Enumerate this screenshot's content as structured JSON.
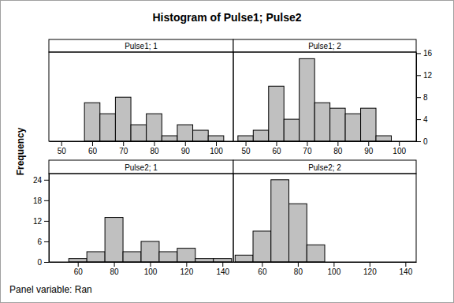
{
  "chart_data": {
    "type": "histogram",
    "title": "Histogram of Pulse1; Pulse2",
    "ylabel": "Frequency",
    "footnote": "Panel variable: Ran",
    "color": "#c0c0c0",
    "rows": [
      {
        "ylim": [
          0,
          16.2
        ],
        "yticks": [
          0,
          4,
          8,
          12,
          16
        ],
        "panels": [
          {
            "title": "Pulse1; 1",
            "xlim": [
              46,
              105.6
            ],
            "xticks": [
              50,
              60,
              70,
              80,
              90,
              100
            ],
            "bins": [
              57.5,
              62.5,
              67.5,
              72.5,
              77.5,
              82.5,
              87.5,
              92.5,
              97.5,
              102.5
            ],
            "values": [
              7,
              5,
              8,
              3,
              5,
              1,
              3,
              2,
              1
            ]
          },
          {
            "title": "Pulse1; 2",
            "xlim": [
              46,
              105.6
            ],
            "xticks": [
              50,
              60,
              70,
              80,
              90,
              100
            ],
            "bins": [
              47.5,
              52.5,
              57.5,
              62.5,
              67.5,
              72.5,
              77.5,
              82.5,
              87.5,
              92.5,
              97.5
            ],
            "values": [
              1,
              2,
              10,
              4,
              15,
              7,
              6,
              5,
              6,
              1
            ]
          }
        ]
      },
      {
        "ylim": [
          0,
          25.8
        ],
        "yticks": [
          0,
          6,
          12,
          18,
          24
        ],
        "panels": [
          {
            "title": "Pulse2; 1",
            "xlim": [
              44,
              146
            ],
            "xticks": [
              60,
              80,
              100,
              120,
              140
            ],
            "bins": [
              55,
              65,
              75,
              85,
              95,
              105,
              115,
              125,
              135,
              145
            ],
            "values": [
              1,
              3,
              13,
              3,
              6,
              3,
              4,
              1,
              1
            ]
          },
          {
            "title": "Pulse2; 2",
            "xlim": [
              44,
              146
            ],
            "xticks": [
              60,
              80,
              100,
              120,
              140
            ],
            "bins": [
              45,
              55,
              65,
              75,
              85,
              95
            ],
            "values": [
              2,
              9,
              24,
              17,
              5
            ]
          }
        ]
      }
    ]
  }
}
